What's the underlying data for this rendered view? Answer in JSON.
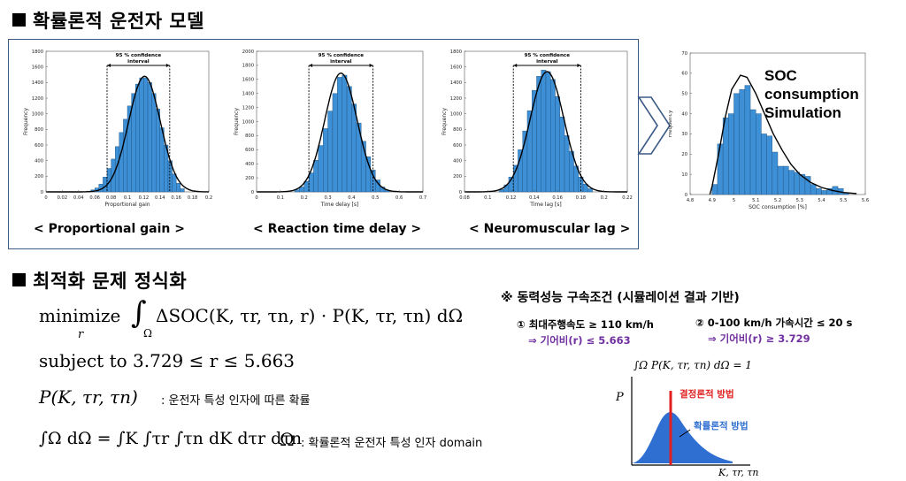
{
  "section1": {
    "title": "확률론적 운전자 모델"
  },
  "section2": {
    "title": "최적화 문제 정식화"
  },
  "histograms": {
    "ci_label_line1": "95 % confidence",
    "ci_label_line2": "interval",
    "ylabel": "Frequency",
    "captions": [
      "< Proportional gain >",
      "< Reaction time delay >",
      "< Neuromuscular lag >"
    ]
  },
  "soc": {
    "line1": "SOC",
    "line2": "consumption",
    "line3": "Simulation"
  },
  "chart_data": [
    {
      "type": "bar",
      "xlabel": "Proportional gain",
      "ylabel": "Frequency",
      "xlim": [
        0,
        0.2
      ],
      "ylim": [
        0,
        1800
      ],
      "xticks": [
        "0",
        "0.02",
        "0.04",
        "0.06",
        "0.08",
        "0.1",
        "0.12",
        "0.14",
        "0.16",
        "0.18",
        "0.2"
      ],
      "yticks": [
        "0",
        "200",
        "400",
        "600",
        "800",
        "1000",
        "1200",
        "1400",
        "1600",
        "1800"
      ],
      "ci": [
        0.075,
        0.152
      ],
      "bins": [
        [
          0.05,
          0.055,
          10
        ],
        [
          0.055,
          0.06,
          25
        ],
        [
          0.06,
          0.065,
          50
        ],
        [
          0.065,
          0.07,
          100
        ],
        [
          0.07,
          0.075,
          190
        ],
        [
          0.075,
          0.08,
          300
        ],
        [
          0.08,
          0.085,
          420
        ],
        [
          0.085,
          0.09,
          580
        ],
        [
          0.09,
          0.095,
          760
        ],
        [
          0.095,
          0.1,
          930
        ],
        [
          0.1,
          0.105,
          1100
        ],
        [
          0.105,
          0.11,
          1260
        ],
        [
          0.11,
          0.115,
          1380
        ],
        [
          0.115,
          0.12,
          1460
        ],
        [
          0.12,
          0.125,
          1460
        ],
        [
          0.125,
          0.13,
          1400
        ],
        [
          0.13,
          0.135,
          1260
        ],
        [
          0.135,
          0.14,
          1060
        ],
        [
          0.14,
          0.145,
          820
        ],
        [
          0.145,
          0.15,
          600
        ],
        [
          0.15,
          0.155,
          400
        ],
        [
          0.155,
          0.16,
          230
        ],
        [
          0.16,
          0.165,
          110
        ],
        [
          0.165,
          0.17,
          40
        ]
      ],
      "curve": {
        "mu": 0.121,
        "sigma": 0.0195,
        "peak": 1480
      }
    },
    {
      "type": "bar",
      "xlabel": "Time delay [s]",
      "ylabel": "Frequency",
      "xlim": [
        0,
        0.7
      ],
      "ylim": [
        0,
        2000
      ],
      "xticks": [
        "0",
        "0.1",
        "0.2",
        "0.3",
        "0.4",
        "0.5",
        "0.6",
        "0.7"
      ],
      "yticks": [
        "0",
        "200",
        "400",
        "600",
        "800",
        "1000",
        "1200",
        "1400",
        "1600",
        "1800",
        "2000"
      ],
      "ci": [
        0.22,
        0.49
      ],
      "bins": [
        [
          0.16,
          0.18,
          30
        ],
        [
          0.18,
          0.2,
          70
        ],
        [
          0.2,
          0.22,
          150
        ],
        [
          0.22,
          0.24,
          270
        ],
        [
          0.24,
          0.26,
          450
        ],
        [
          0.26,
          0.28,
          660
        ],
        [
          0.28,
          0.3,
          900
        ],
        [
          0.3,
          0.32,
          1150
        ],
        [
          0.32,
          0.34,
          1400
        ],
        [
          0.34,
          0.36,
          1630
        ],
        [
          0.36,
          0.38,
          1660
        ],
        [
          0.38,
          0.4,
          1500
        ],
        [
          0.4,
          0.42,
          1250
        ],
        [
          0.42,
          0.44,
          980
        ],
        [
          0.44,
          0.46,
          720
        ],
        [
          0.46,
          0.48,
          500
        ],
        [
          0.48,
          0.5,
          310
        ],
        [
          0.5,
          0.52,
          170
        ],
        [
          0.52,
          0.54,
          70
        ],
        [
          0.54,
          0.56,
          25
        ]
      ],
      "curve": {
        "mu": 0.355,
        "sigma": 0.068,
        "peak": 1690
      }
    },
    {
      "type": "bar",
      "xlabel": "Time lag [s]",
      "ylabel": "Frequency",
      "xlim": [
        0.08,
        0.22
      ],
      "ylim": [
        0,
        1800
      ],
      "xticks": [
        "0.08",
        "0.1",
        "0.12",
        "0.14",
        "0.16",
        "0.18",
        "0.2",
        "0.22"
      ],
      "yticks": [
        "0",
        "200",
        "400",
        "600",
        "800",
        "1000",
        "1200",
        "1400",
        "1600",
        "1800"
      ],
      "ci": [
        0.122,
        0.18
      ],
      "bins": [
        [
          0.11,
          0.114,
          30
        ],
        [
          0.114,
          0.118,
          90
        ],
        [
          0.118,
          0.122,
          190
        ],
        [
          0.122,
          0.126,
          340
        ],
        [
          0.126,
          0.13,
          540
        ],
        [
          0.13,
          0.134,
          780
        ],
        [
          0.134,
          0.138,
          1040
        ],
        [
          0.138,
          0.142,
          1300
        ],
        [
          0.142,
          0.146,
          1480
        ],
        [
          0.146,
          0.15,
          1560
        ],
        [
          0.15,
          0.154,
          1540
        ],
        [
          0.154,
          0.158,
          1440
        ],
        [
          0.158,
          0.162,
          1220
        ],
        [
          0.162,
          0.166,
          960
        ],
        [
          0.166,
          0.17,
          720
        ],
        [
          0.17,
          0.174,
          520
        ],
        [
          0.174,
          0.178,
          330
        ],
        [
          0.178,
          0.182,
          190
        ],
        [
          0.182,
          0.186,
          100
        ],
        [
          0.186,
          0.19,
          40
        ]
      ],
      "curve": {
        "mu": 0.151,
        "sigma": 0.0145,
        "peak": 1540
      }
    },
    {
      "type": "bar",
      "xlabel": "SOC consumption [%]",
      "ylabel": "Frequency",
      "xlim": [
        4.8,
        5.6
      ],
      "ylim": [
        0,
        70
      ],
      "xticks": [
        "4.8",
        "4.9",
        "5",
        "5.1",
        "5.2",
        "5.3",
        "5.4",
        "5.5",
        "5.6"
      ],
      "yticks": [
        "0",
        "10",
        "20",
        "30",
        "40",
        "50",
        "60",
        "70"
      ],
      "bins": [
        [
          4.9,
          4.925,
          5
        ],
        [
          4.925,
          4.95,
          25
        ],
        [
          4.95,
          4.975,
          38
        ],
        [
          4.975,
          5.0,
          40
        ],
        [
          5.0,
          5.025,
          50
        ],
        [
          5.025,
          5.05,
          52
        ],
        [
          5.05,
          5.075,
          54
        ],
        [
          5.075,
          5.1,
          42
        ],
        [
          5.1,
          5.125,
          40
        ],
        [
          5.125,
          5.15,
          30
        ],
        [
          5.15,
          5.175,
          29
        ],
        [
          5.175,
          5.2,
          21
        ],
        [
          5.2,
          5.225,
          14
        ],
        [
          5.225,
          5.25,
          14
        ],
        [
          5.25,
          5.275,
          12
        ],
        [
          5.275,
          5.3,
          11
        ],
        [
          5.3,
          5.325,
          10
        ],
        [
          5.325,
          5.35,
          9
        ],
        [
          5.35,
          5.375,
          5
        ],
        [
          5.375,
          5.4,
          3
        ],
        [
          5.4,
          5.425,
          2
        ],
        [
          5.425,
          5.45,
          3
        ],
        [
          5.45,
          5.475,
          4
        ],
        [
          5.475,
          5.5,
          3
        ],
        [
          5.5,
          5.525,
          1
        ]
      ],
      "curve_points": [
        [
          4.89,
          0
        ],
        [
          4.9,
          4
        ],
        [
          4.93,
          20
        ],
        [
          4.96,
          38
        ],
        [
          4.99,
          52
        ],
        [
          5.03,
          59
        ],
        [
          5.06,
          58
        ],
        [
          5.1,
          50
        ],
        [
          5.14,
          40
        ],
        [
          5.18,
          30
        ],
        [
          5.22,
          22
        ],
        [
          5.26,
          15
        ],
        [
          5.3,
          10
        ],
        [
          5.35,
          6
        ],
        [
          5.4,
          3.5
        ],
        [
          5.45,
          2
        ],
        [
          5.5,
          1
        ],
        [
          5.56,
          0.5
        ]
      ]
    }
  ],
  "equations": {
    "minimize_word": "minimize",
    "minimize_sub": "r",
    "objective_integrand": "ΔSOC(K, τr, τn, r) · P(K, τr, τn) dΩ",
    "subject_to": "subject to 3.729 ≤ r ≤ 5.663",
    "prob_expr": "P(K, τr, τn)",
    "prob_note": ": 운전자 특성 인자에 따른 확률",
    "domain_expr": "∫Ω dΩ = ∫K ∫τr ∫τn dK dτr dτn",
    "omega": "Ω",
    "domain_note": ": 확률론적 운전자 특성 인자 domain"
  },
  "constraints": {
    "title": "※ 동력성능 구속조건 (시뮬레이션 결과 기반)",
    "c1": "① 최대주행속도 ≥ 110 km/h",
    "c1_gear": "⇒ 기어비(r) ≤ 5.663",
    "c2": "② 0-100 km/h 가속시간 ≤ 20 s",
    "c2_gear": "⇒ 기어비(r) ≥ 3.729"
  },
  "diagram": {
    "integral": "∫Ω P(K, τr, τn) dΩ = 1",
    "yaxis": "P",
    "xaxis": "K, τr, τn",
    "deterministic": "결정론적 방법",
    "probabilistic": "확률론적 방법",
    "fill_color": "#2f6fd1",
    "det_color": "#e02020"
  }
}
